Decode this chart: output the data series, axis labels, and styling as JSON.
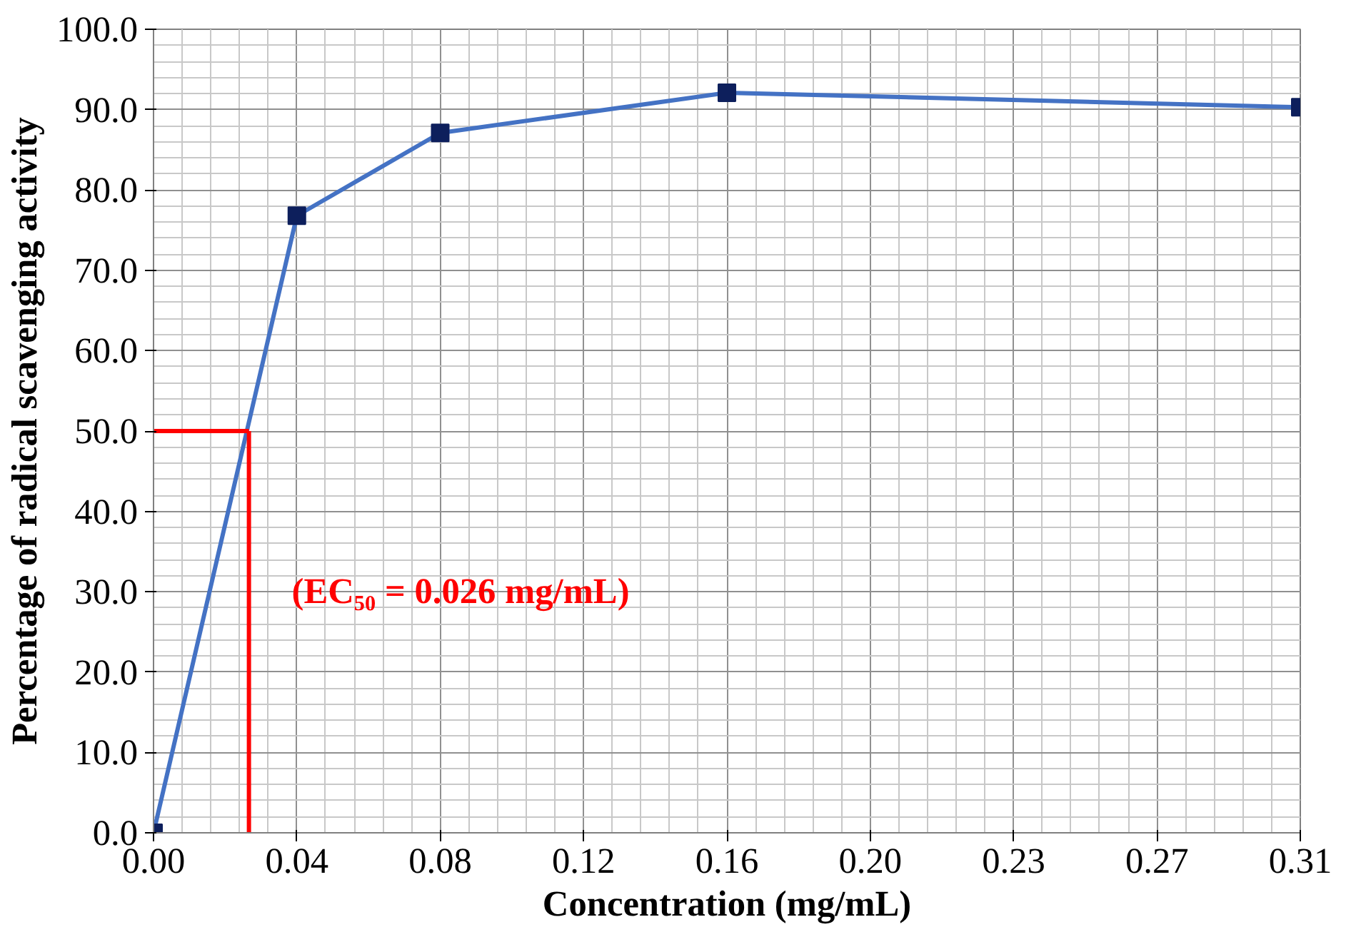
{
  "chart_data": {
    "type": "line",
    "xlabel": "Concentration (mg/mL)",
    "ylabel": "Percentage of radical scavenging activity",
    "x": [
      0,
      0.0390625,
      0.078125,
      0.15625,
      0.3125
    ],
    "series": [
      {
        "color": "#4472c4",
        "values": [
          0,
          76.8,
          87.1,
          92.1,
          90.3
        ]
      }
    ],
    "marker": "square",
    "line_style": "solid",
    "grid": true,
    "xlim": [
      0,
      0.3125
    ],
    "ylim": [
      0,
      100
    ],
    "xticks": [
      {
        "value": 0,
        "label": "0.00"
      },
      {
        "value": 0.0390625,
        "label": "0.04"
      },
      {
        "value": 0.078125,
        "label": "0.08"
      },
      {
        "value": 0.1171875,
        "label": "0.12"
      },
      {
        "value": 0.15625,
        "label": "0.16"
      },
      {
        "value": 0.1953125,
        "label": "0.20"
      },
      {
        "value": 0.234375,
        "label": "0.23"
      },
      {
        "value": 0.2734375,
        "label": "0.27"
      },
      {
        "value": 0.3125,
        "label": "0.31"
      }
    ],
    "yticks": [
      {
        "value": 0,
        "label": "0.0"
      },
      {
        "value": 10,
        "label": "10.0"
      },
      {
        "value": 20,
        "label": "20.0"
      },
      {
        "value": 30,
        "label": "30.0"
      },
      {
        "value": 40,
        "label": "40.0"
      },
      {
        "value": 50,
        "label": "50.0"
      },
      {
        "value": 60,
        "label": "60.0"
      },
      {
        "value": 70,
        "label": "70.0"
      },
      {
        "value": 80,
        "label": "80.0"
      },
      {
        "value": 90,
        "label": "90.0"
      },
      {
        "value": 100,
        "label": "100.0"
      }
    ],
    "ref_lines": [
      {
        "axis": "y",
        "value": 50,
        "color": "#ff0000"
      },
      {
        "axis": "x",
        "value": 0.026,
        "color": "#ff0000"
      }
    ],
    "annotations": [
      "(EC₅₀ = 0.026 mg/mL)"
    ]
  }
}
